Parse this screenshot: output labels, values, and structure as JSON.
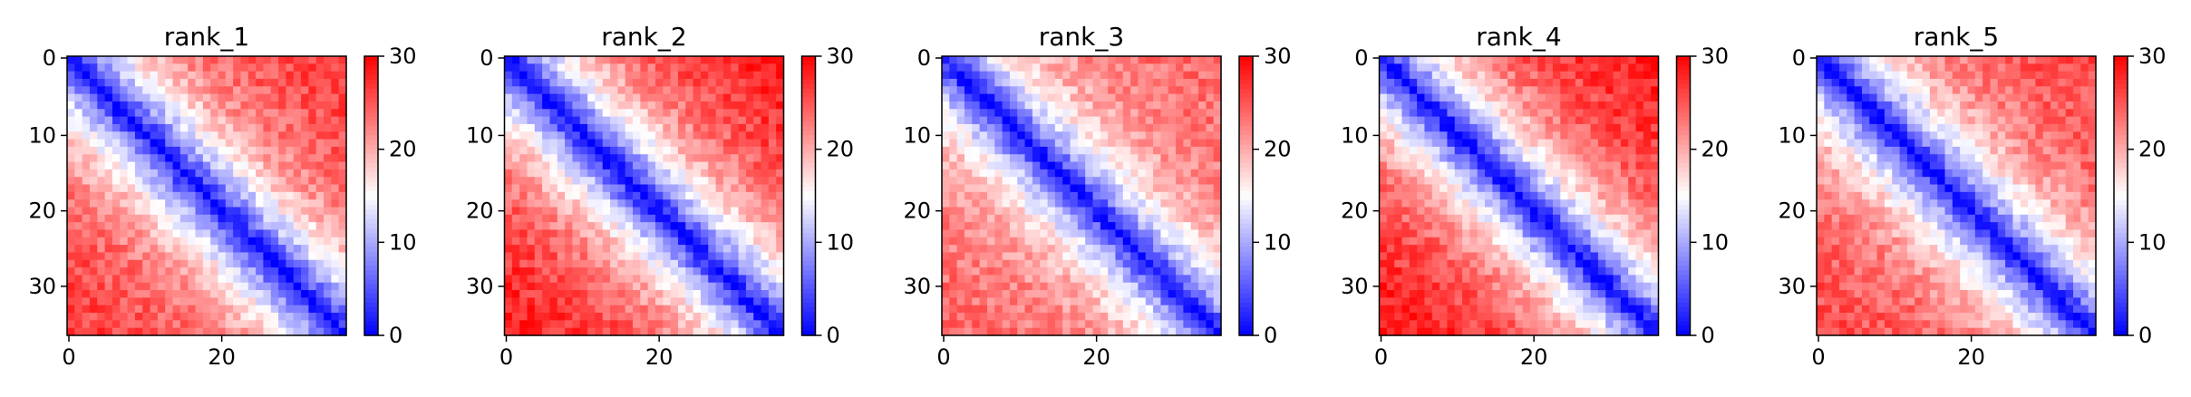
{
  "chart_data": [
    {
      "type": "heatmap",
      "title": "rank_1",
      "n": 37,
      "xticks": [
        0,
        20
      ],
      "yticks": [
        0,
        10,
        20,
        30
      ],
      "clim": [
        0,
        30
      ],
      "colorbar_ticks": [
        0,
        10,
        20,
        30
      ],
      "colormap": "bwr",
      "diagonal_width": 9.5,
      "off_diagonal_value": 27
    },
    {
      "type": "heatmap",
      "title": "rank_2",
      "n": 37,
      "xticks": [
        0,
        20
      ],
      "yticks": [
        0,
        10,
        20,
        30
      ],
      "clim": [
        0,
        30
      ],
      "colorbar_ticks": [
        0,
        10,
        20,
        30
      ],
      "colormap": "bwr",
      "diagonal_width": 10.5,
      "off_diagonal_value": 29
    },
    {
      "type": "heatmap",
      "title": "rank_3",
      "n": 37,
      "xticks": [
        0,
        20
      ],
      "yticks": [
        0,
        10,
        20,
        30
      ],
      "clim": [
        0,
        30
      ],
      "colorbar_ticks": [
        0,
        10,
        20,
        30
      ],
      "colormap": "bwr",
      "diagonal_width": 8.0,
      "off_diagonal_value": 24
    },
    {
      "type": "heatmap",
      "title": "rank_4",
      "n": 37,
      "xticks": [
        0,
        20
      ],
      "yticks": [
        0,
        10,
        20,
        30
      ],
      "clim": [
        0,
        30
      ],
      "colorbar_ticks": [
        0,
        10,
        20,
        30
      ],
      "colormap": "bwr",
      "diagonal_width": 10.0,
      "off_diagonal_value": 29
    },
    {
      "type": "heatmap",
      "title": "rank_5",
      "n": 37,
      "xticks": [
        0,
        20
      ],
      "yticks": [
        0,
        10,
        20,
        30
      ],
      "clim": [
        0,
        30
      ],
      "colorbar_ticks": [
        0,
        10,
        20,
        30
      ],
      "colormap": "bwr",
      "diagonal_width": 9.0,
      "off_diagonal_value": 26
    }
  ]
}
